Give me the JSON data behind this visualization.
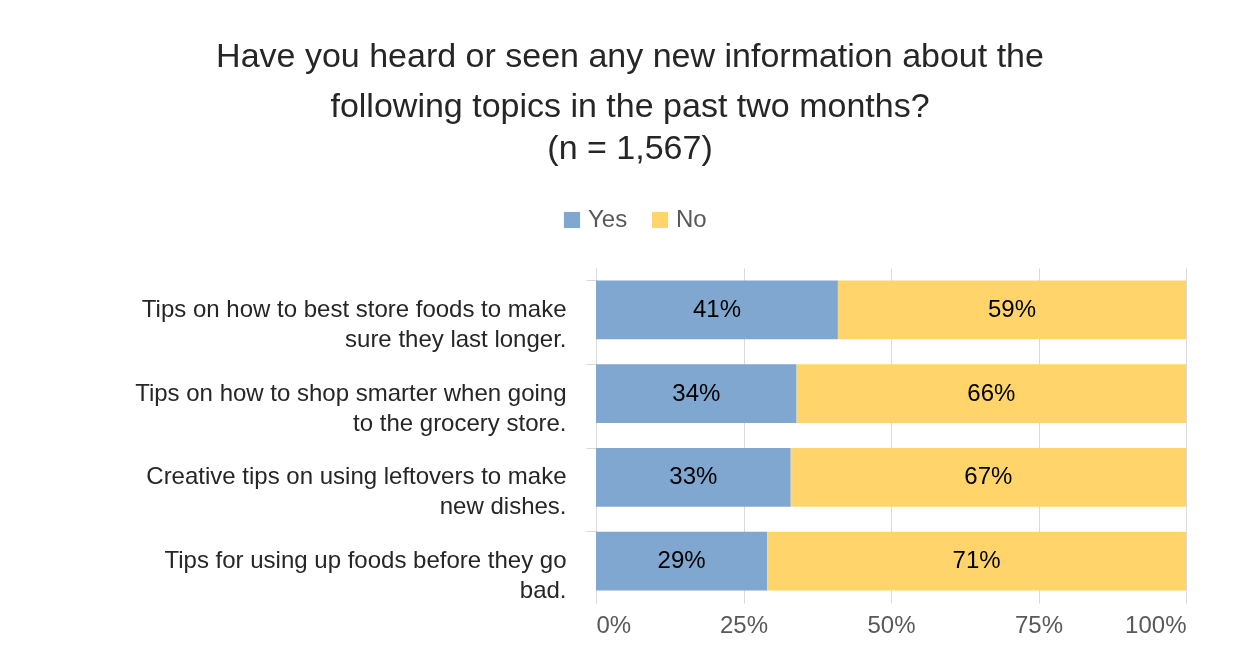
{
  "chart_data": {
    "type": "bar",
    "orientation": "horizontal",
    "stacked": true,
    "title": "Have you heard or seen any new information about the following topics in the past two months?",
    "subtitle": "(n = 1,567)",
    "categories": [
      "Tips on how to best store foods to make sure they last longer.",
      "Tips on how to shop smarter when going to the grocery store.",
      "Creative tips on using leftovers to make new dishes.",
      "Tips for using up foods before they go bad."
    ],
    "series": [
      {
        "name": "Yes",
        "color": "#7fa7cf",
        "values": [
          41,
          34,
          33,
          29
        ],
        "value_labels": [
          "41%",
          "34%",
          "33%",
          "29%"
        ]
      },
      {
        "name": "No",
        "color": "#ffd56b",
        "values": [
          59,
          66,
          67,
          71
        ],
        "value_labels": [
          "59%",
          "66%",
          "67%",
          "71%"
        ]
      }
    ],
    "xlim": [
      0,
      100
    ],
    "xticks": [
      {
        "value": 0,
        "label": "0%"
      },
      {
        "value": 25,
        "label": "25%"
      },
      {
        "value": 50,
        "label": "50%"
      },
      {
        "value": 75,
        "label": "75%"
      },
      {
        "value": 100,
        "label": "100%"
      }
    ],
    "grid": "x",
    "legend": "top"
  }
}
